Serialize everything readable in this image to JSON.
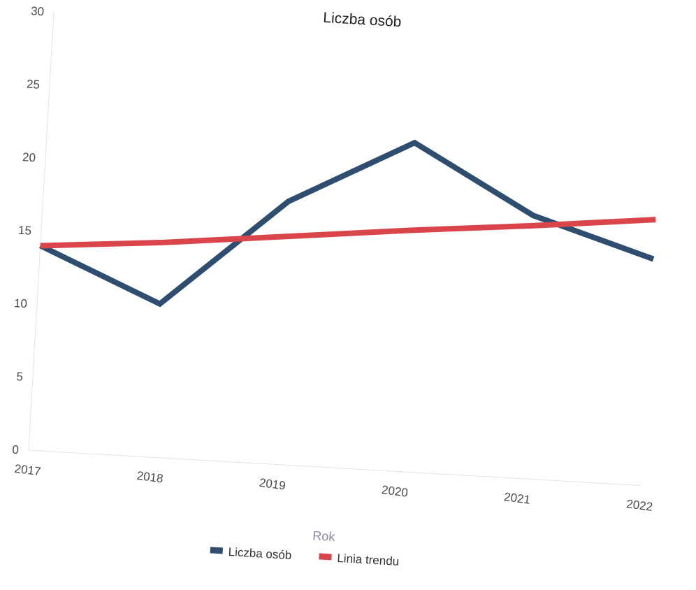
{
  "chart_data": {
    "type": "line",
    "title": "Liczba osób",
    "xlabel": "Rok",
    "ylabel": "",
    "categories": [
      "2017",
      "2018",
      "2019",
      "2020",
      "2021",
      "2022"
    ],
    "y_ticks": [
      "0",
      "5",
      "10",
      "15",
      "20",
      "25",
      "30"
    ],
    "ylim": [
      0,
      30
    ],
    "grid": false,
    "legend_position": "bottom",
    "series": [
      {
        "name": "Liczba osób",
        "values": [
          14,
          10.5,
          18,
          22.5,
          18,
          15.5
        ],
        "color": "#2f4d6e"
      },
      {
        "name": "Linia trendu",
        "values": [
          14,
          14.7,
          15.6,
          16.5,
          17.3,
          18.2
        ],
        "color": "#d9454a"
      }
    ]
  }
}
